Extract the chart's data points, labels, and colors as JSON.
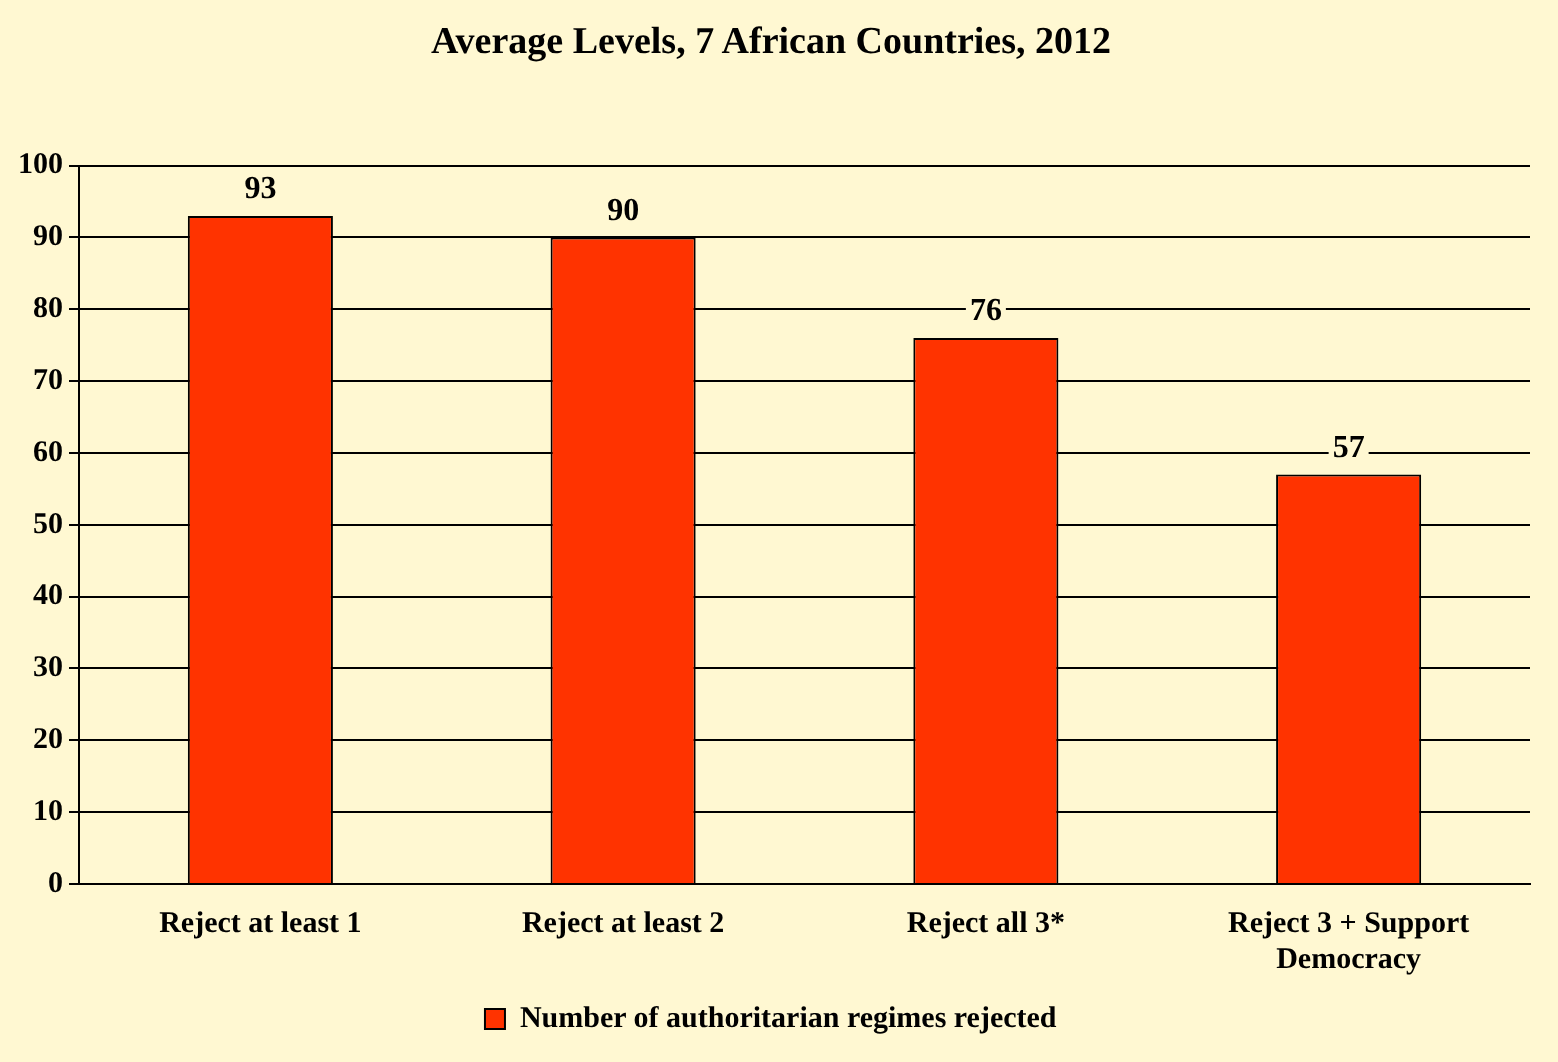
{
  "chart_data": {
    "type": "bar",
    "title": "Average Levels, 7 African Countries, 2012",
    "categories": [
      "Reject at least 1",
      "Reject at least 2",
      "Reject all 3*",
      "Reject 3 + Support Democracy"
    ],
    "series": [
      {
        "name": "Number of authoritarian regimes rejected",
        "color": "#ff3300",
        "values": [
          93,
          90,
          76,
          57
        ]
      }
    ],
    "ylim": [
      0,
      100
    ],
    "yticks": [
      0,
      10,
      20,
      30,
      40,
      50,
      60,
      70,
      80,
      90,
      100
    ],
    "grid": "y",
    "legend": "bottom",
    "data_labels": true
  }
}
